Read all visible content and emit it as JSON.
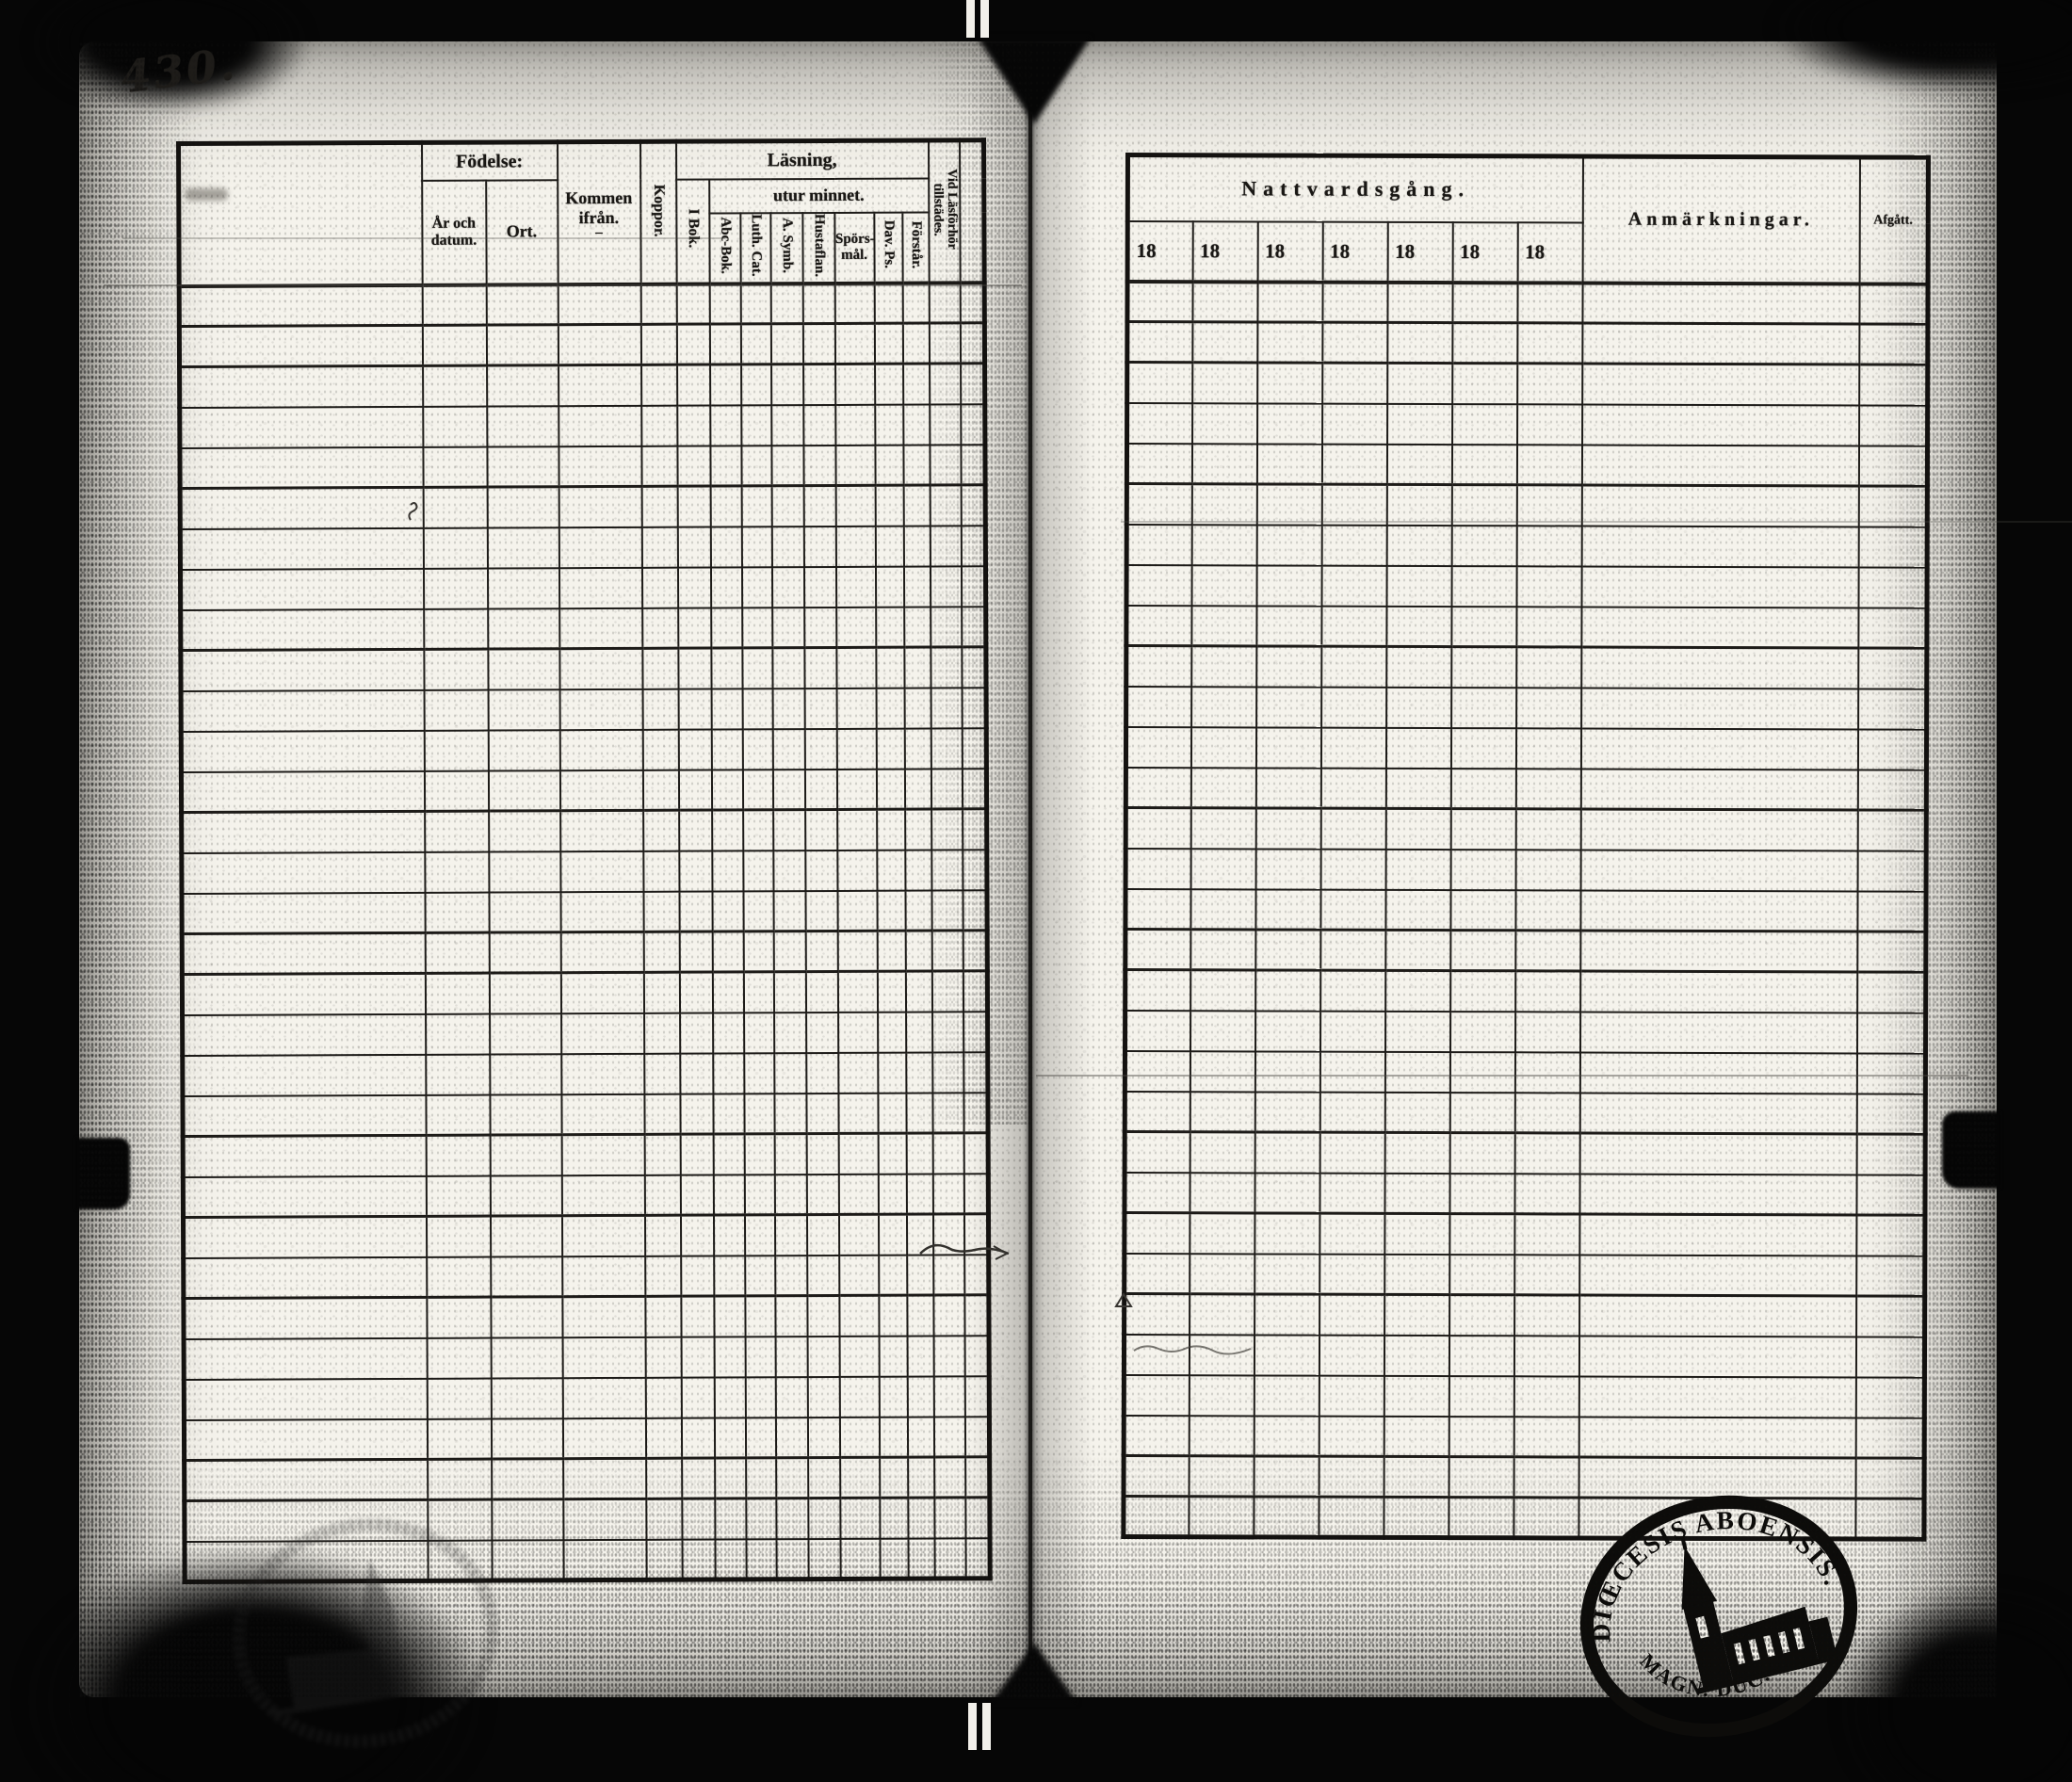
{
  "scan": {
    "page_number": "430."
  },
  "left_table": {
    "header": {
      "fodelse": "Födelse:",
      "ar_och_datum": "År och datum.",
      "ort": "Ort.",
      "kommen_ifran": "Kommen ifrån.",
      "kommen_mark": "–",
      "koppor": "Koppor.",
      "lasning": "Läsning,",
      "utur_minnet": "utur minnet.",
      "i_bok": "I Bok.",
      "abc_bok": "Abc-Bok.",
      "luth_cat": "Luth. Cat.",
      "a_symb": "A. Symb.",
      "hustaflan": "Hustaflan.",
      "sporsmal_line1": "Spörs-",
      "sporsmal_line2": "mål.",
      "dav_ps": "Dav. Ps.",
      "forstar": "Förstår.",
      "vid_lasforhor_line1": "Vid Läsförhör",
      "vid_lasforhor_line2": "tillstädes."
    },
    "row_count": 32
  },
  "right_table": {
    "header": {
      "nattvardsgang": "Nattvardsgång.",
      "year_columns": [
        "18",
        "18",
        "18",
        "18",
        "18",
        "18",
        "18"
      ],
      "anmarkningar": "Anmärkningar.",
      "afgatt": "Afgått."
    },
    "row_count": 31
  },
  "stamp": {
    "arc_top": "DIŒCESIS ABOENSIS.",
    "arc_bottom": "MAGN. DUC. FINL."
  },
  "colors": {
    "ink": "#1d1b18",
    "paper": "#f5f3ec",
    "frame": "#060606"
  }
}
